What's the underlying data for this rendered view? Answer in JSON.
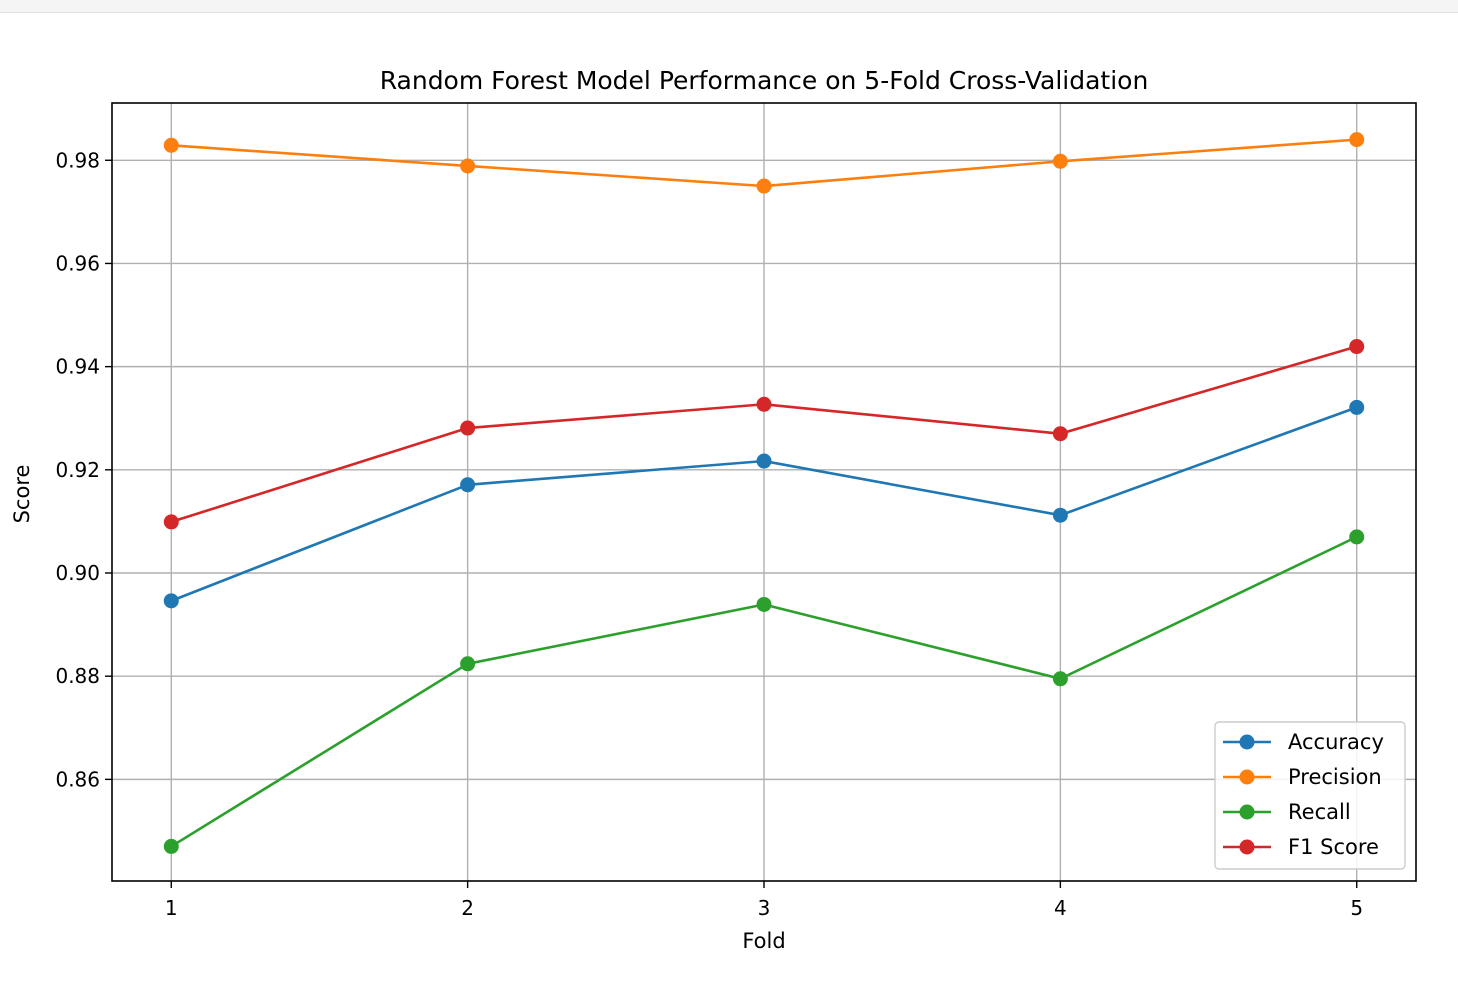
{
  "chart_data": {
    "type": "line",
    "title": "Random Forest Model Performance on 5-Fold Cross-Validation",
    "xlabel": "Fold",
    "ylabel": "Score",
    "x": [
      1,
      2,
      3,
      4,
      5
    ],
    "x_ticks": [
      "1",
      "2",
      "3",
      "4",
      "5"
    ],
    "xlim": [
      0.8,
      5.2
    ],
    "ylim": [
      0.8403,
      0.9911
    ],
    "y_ticks": [
      "0.86",
      "0.88",
      "0.90",
      "0.92",
      "0.94",
      "0.96",
      "0.98"
    ],
    "y_tick_values": [
      0.86,
      0.88,
      0.9,
      0.92,
      0.94,
      0.96,
      0.98
    ],
    "grid": true,
    "legend_position": "bottom-right",
    "marker": "circle",
    "series": [
      {
        "name": "Accuracy",
        "color": "#1f77b4",
        "values": [
          0.8946,
          0.9171,
          0.9217,
          0.9112,
          0.9321
        ]
      },
      {
        "name": "Precision",
        "color": "#ff7f0e",
        "values": [
          0.9829,
          0.9789,
          0.975,
          0.9798,
          0.984
        ]
      },
      {
        "name": "Recall",
        "color": "#2ca02c",
        "values": [
          0.847,
          0.8824,
          0.8939,
          0.8795,
          0.907
        ]
      },
      {
        "name": "F1 Score",
        "color": "#d62728",
        "values": [
          0.9099,
          0.9281,
          0.9327,
          0.927,
          0.9439
        ]
      }
    ]
  }
}
